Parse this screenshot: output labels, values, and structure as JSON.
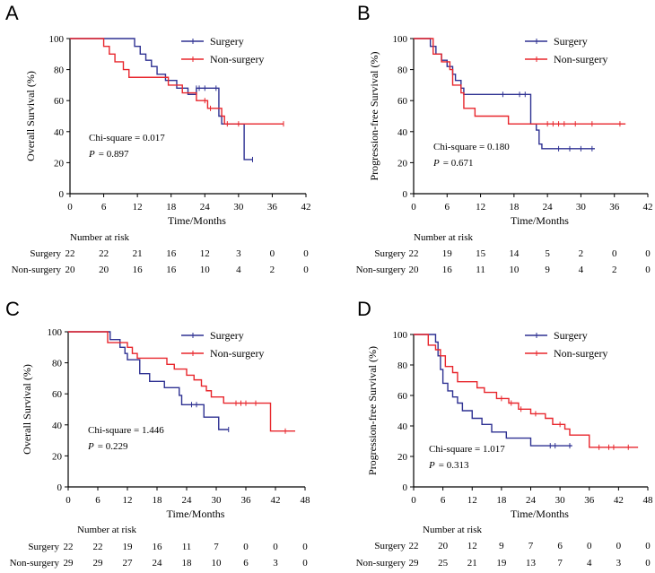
{
  "colors": {
    "surgery": "#2E3192",
    "non_surgery": "#E8262C",
    "axis": "#000000"
  },
  "chart_data": [
    {
      "type": "line",
      "panel": "A",
      "xlabel": "Time/Months",
      "ylabel": "Overall Survival (%)",
      "xlim": [
        0,
        42
      ],
      "ylim": [
        0,
        100
      ],
      "xticks": [
        0,
        6,
        12,
        18,
        24,
        30,
        36,
        42
      ],
      "yticks": [
        0,
        20,
        40,
        60,
        80,
        100
      ],
      "legend": [
        "Surgery",
        "Non-surgery"
      ],
      "stat_chi": "Chi-square = 0.017",
      "stat_p_label": "P",
      "stat_p_value": "= 0.897",
      "series": [
        {
          "name": "Surgery",
          "color": "#2E3192",
          "steps": [
            [
              0,
              100
            ],
            [
              11,
              100
            ],
            [
              11.5,
              95
            ],
            [
              12.5,
              90
            ],
            [
              13.5,
              86
            ],
            [
              14.5,
              82
            ],
            [
              15.5,
              77
            ],
            [
              17,
              73
            ],
            [
              19,
              68
            ],
            [
              21,
              64
            ],
            [
              22.5,
              68
            ],
            [
              26,
              68
            ],
            [
              26.5,
              50
            ],
            [
              27,
              45
            ],
            [
              31,
              45
            ],
            [
              31,
              22
            ],
            [
              32.5,
              22
            ]
          ],
          "censors": [
            22.5,
            23,
            24,
            26,
            32.5
          ]
        },
        {
          "name": "Non-surgery",
          "color": "#E8262C",
          "steps": [
            [
              0,
              100
            ],
            [
              5.5,
              100
            ],
            [
              6,
              95
            ],
            [
              7,
              90
            ],
            [
              8,
              85
            ],
            [
              9.5,
              80
            ],
            [
              10.5,
              75
            ],
            [
              17,
              75
            ],
            [
              17.5,
              70
            ],
            [
              20,
              65
            ],
            [
              22.5,
              60
            ],
            [
              24.5,
              55
            ],
            [
              27,
              50
            ],
            [
              27.5,
              45
            ],
            [
              38,
              45
            ]
          ],
          "censors": [
            24,
            25,
            28,
            30,
            38
          ]
        }
      ],
      "risk_title": "Number at risk",
      "risk_rows": [
        {
          "label": "Surgery",
          "values": [
            "22",
            "22",
            "21",
            "16",
            "12",
            "3",
            "0",
            "0"
          ]
        },
        {
          "label": "Non-surgery",
          "values": [
            "20",
            "20",
            "16",
            "16",
            "10",
            "4",
            "2",
            "0"
          ]
        }
      ]
    },
    {
      "type": "line",
      "panel": "B",
      "xlabel": "Time/Months",
      "ylabel": "Progression-free Survival (%)",
      "xlim": [
        0,
        42
      ],
      "ylim": [
        0,
        100
      ],
      "xticks": [
        0,
        6,
        12,
        18,
        24,
        30,
        36,
        42
      ],
      "yticks": [
        0,
        20,
        40,
        60,
        80,
        100
      ],
      "legend": [
        "Surgery",
        "Non-surgery"
      ],
      "stat_chi": "Chi-square = 0.180",
      "stat_p_label": "P",
      "stat_p_value": "= 0.671",
      "series": [
        {
          "name": "Surgery",
          "color": "#2E3192",
          "steps": [
            [
              0,
              100
            ],
            [
              2.5,
              100
            ],
            [
              3,
              95
            ],
            [
              4,
              90
            ],
            [
              5,
              86
            ],
            [
              6,
              82
            ],
            [
              7,
              77
            ],
            [
              7.5,
              73
            ],
            [
              8.5,
              68
            ],
            [
              9,
              64
            ],
            [
              20.5,
              64
            ],
            [
              21,
              45
            ],
            [
              22,
              41
            ],
            [
              22.5,
              32
            ],
            [
              23,
              29
            ],
            [
              32.5,
              29
            ]
          ],
          "censors": [
            16,
            19,
            20,
            26,
            28,
            30,
            32
          ]
        },
        {
          "name": "Non-surgery",
          "color": "#E8262C",
          "steps": [
            [
              0,
              100
            ],
            [
              3,
              100
            ],
            [
              3.5,
              90
            ],
            [
              5,
              85
            ],
            [
              6.5,
              80
            ],
            [
              7,
              70
            ],
            [
              8.5,
              65
            ],
            [
              9,
              55
            ],
            [
              11,
              50
            ],
            [
              16.5,
              50
            ],
            [
              17,
              45
            ],
            [
              38,
              45
            ]
          ],
          "censors": [
            24,
            25,
            26,
            27,
            29,
            32,
            37
          ]
        }
      ],
      "risk_title": "Number at risk",
      "risk_rows": [
        {
          "label": "Surgery",
          "values": [
            "22",
            "19",
            "15",
            "14",
            "5",
            "2",
            "0",
            "0"
          ]
        },
        {
          "label": "Non-surgery",
          "values": [
            "20",
            "16",
            "11",
            "10",
            "9",
            "4",
            "2",
            "0"
          ]
        }
      ]
    },
    {
      "type": "line",
      "panel": "C",
      "xlabel": "Time/Months",
      "ylabel": "Overall Survival (%)",
      "xlim": [
        0,
        48
      ],
      "ylim": [
        0,
        100
      ],
      "xticks": [
        0,
        6,
        12,
        18,
        24,
        30,
        36,
        42,
        48
      ],
      "yticks": [
        0,
        20,
        40,
        60,
        80,
        100
      ],
      "legend": [
        "Surgery",
        "Non-surgery"
      ],
      "stat_chi": "Chi-square = 1.446",
      "stat_p_label": "P",
      "stat_p_value": "= 0.229",
      "series": [
        {
          "name": "Surgery",
          "color": "#2E3192",
          "steps": [
            [
              0,
              100
            ],
            [
              7.5,
              100
            ],
            [
              8.5,
              95
            ],
            [
              10.5,
              90
            ],
            [
              11.5,
              86
            ],
            [
              12,
              82
            ],
            [
              14,
              82
            ],
            [
              14.5,
              73
            ],
            [
              16.5,
              68
            ],
            [
              19.5,
              64
            ],
            [
              21.5,
              64
            ],
            [
              22.5,
              59
            ],
            [
              23,
              53
            ],
            [
              27,
              53
            ],
            [
              27.5,
              45
            ],
            [
              30,
              45
            ],
            [
              30.5,
              37
            ],
            [
              32.5,
              37
            ]
          ],
          "censors": [
            25,
            26,
            32.5
          ]
        },
        {
          "name": "Non-surgery",
          "color": "#E8262C",
          "steps": [
            [
              0,
              100
            ],
            [
              7,
              100
            ],
            [
              8,
              93
            ],
            [
              12,
              90
            ],
            [
              13,
              86
            ],
            [
              14,
              83
            ],
            [
              19,
              83
            ],
            [
              20,
              79
            ],
            [
              21.5,
              76
            ],
            [
              24,
              72
            ],
            [
              25.5,
              69
            ],
            [
              27,
              65
            ],
            [
              28,
              62
            ],
            [
              29,
              58
            ],
            [
              31.5,
              54
            ],
            [
              40.5,
              54
            ],
            [
              41,
              36
            ],
            [
              46,
              36
            ]
          ],
          "censors": [
            34,
            35,
            36,
            38,
            44
          ]
        }
      ],
      "risk_title": "Number at risk",
      "risk_rows": [
        {
          "label": "Surgery",
          "values": [
            "22",
            "22",
            "19",
            "16",
            "11",
            "7",
            "0",
            "0",
            "0"
          ]
        },
        {
          "label": "Non-surgery",
          "values": [
            "29",
            "29",
            "27",
            "24",
            "18",
            "10",
            "6",
            "3",
            "0"
          ]
        }
      ]
    },
    {
      "type": "line",
      "panel": "D",
      "xlabel": "Time/Months",
      "ylabel": "Progression-free Survival (%)",
      "xlim": [
        0,
        48
      ],
      "ylim": [
        0,
        100
      ],
      "xticks": [
        0,
        6,
        12,
        18,
        24,
        30,
        36,
        42,
        48
      ],
      "yticks": [
        0,
        20,
        40,
        60,
        80,
        100
      ],
      "legend": [
        "Surgery",
        "Non-surgery"
      ],
      "stat_chi": "Chi-square = 1.017",
      "stat_p_label": "P",
      "stat_p_value": "= 0.313",
      "series": [
        {
          "name": "Surgery",
          "color": "#2E3192",
          "steps": [
            [
              0,
              100
            ],
            [
              4,
              100
            ],
            [
              4.5,
              95
            ],
            [
              5,
              86
            ],
            [
              5.5,
              77
            ],
            [
              6,
              68
            ],
            [
              7,
              63
            ],
            [
              8,
              59
            ],
            [
              9,
              55
            ],
            [
              10,
              50
            ],
            [
              12,
              45
            ],
            [
              14,
              41
            ],
            [
              16,
              36
            ],
            [
              19,
              32
            ],
            [
              24,
              27
            ],
            [
              32.5,
              27
            ]
          ],
          "censors": [
            28,
            29,
            32
          ]
        },
        {
          "name": "Non-surgery",
          "color": "#E8262C",
          "steps": [
            [
              0,
              100
            ],
            [
              2.5,
              100
            ],
            [
              3,
              93
            ],
            [
              4.5,
              90
            ],
            [
              5.5,
              86
            ],
            [
              6.5,
              79
            ],
            [
              8,
              75
            ],
            [
              9,
              69
            ],
            [
              13,
              65
            ],
            [
              14.5,
              62
            ],
            [
              17,
              58
            ],
            [
              19.5,
              55
            ],
            [
              21.5,
              51
            ],
            [
              24,
              48
            ],
            [
              27,
              45
            ],
            [
              28.5,
              41
            ],
            [
              31,
              38
            ],
            [
              32,
              34
            ],
            [
              36,
              26
            ],
            [
              46,
              26
            ]
          ],
          "censors": [
            18,
            20,
            22,
            25,
            30,
            38,
            40,
            41,
            44
          ]
        }
      ],
      "risk_title": "Number at risk",
      "risk_rows": [
        {
          "label": "Surgery",
          "values": [
            "22",
            "20",
            "12",
            "9",
            "7",
            "6",
            "0",
            "0",
            "0"
          ]
        },
        {
          "label": "Non-surgery",
          "values": [
            "29",
            "25",
            "21",
            "19",
            "13",
            "7",
            "4",
            "3",
            "0"
          ]
        }
      ]
    }
  ]
}
